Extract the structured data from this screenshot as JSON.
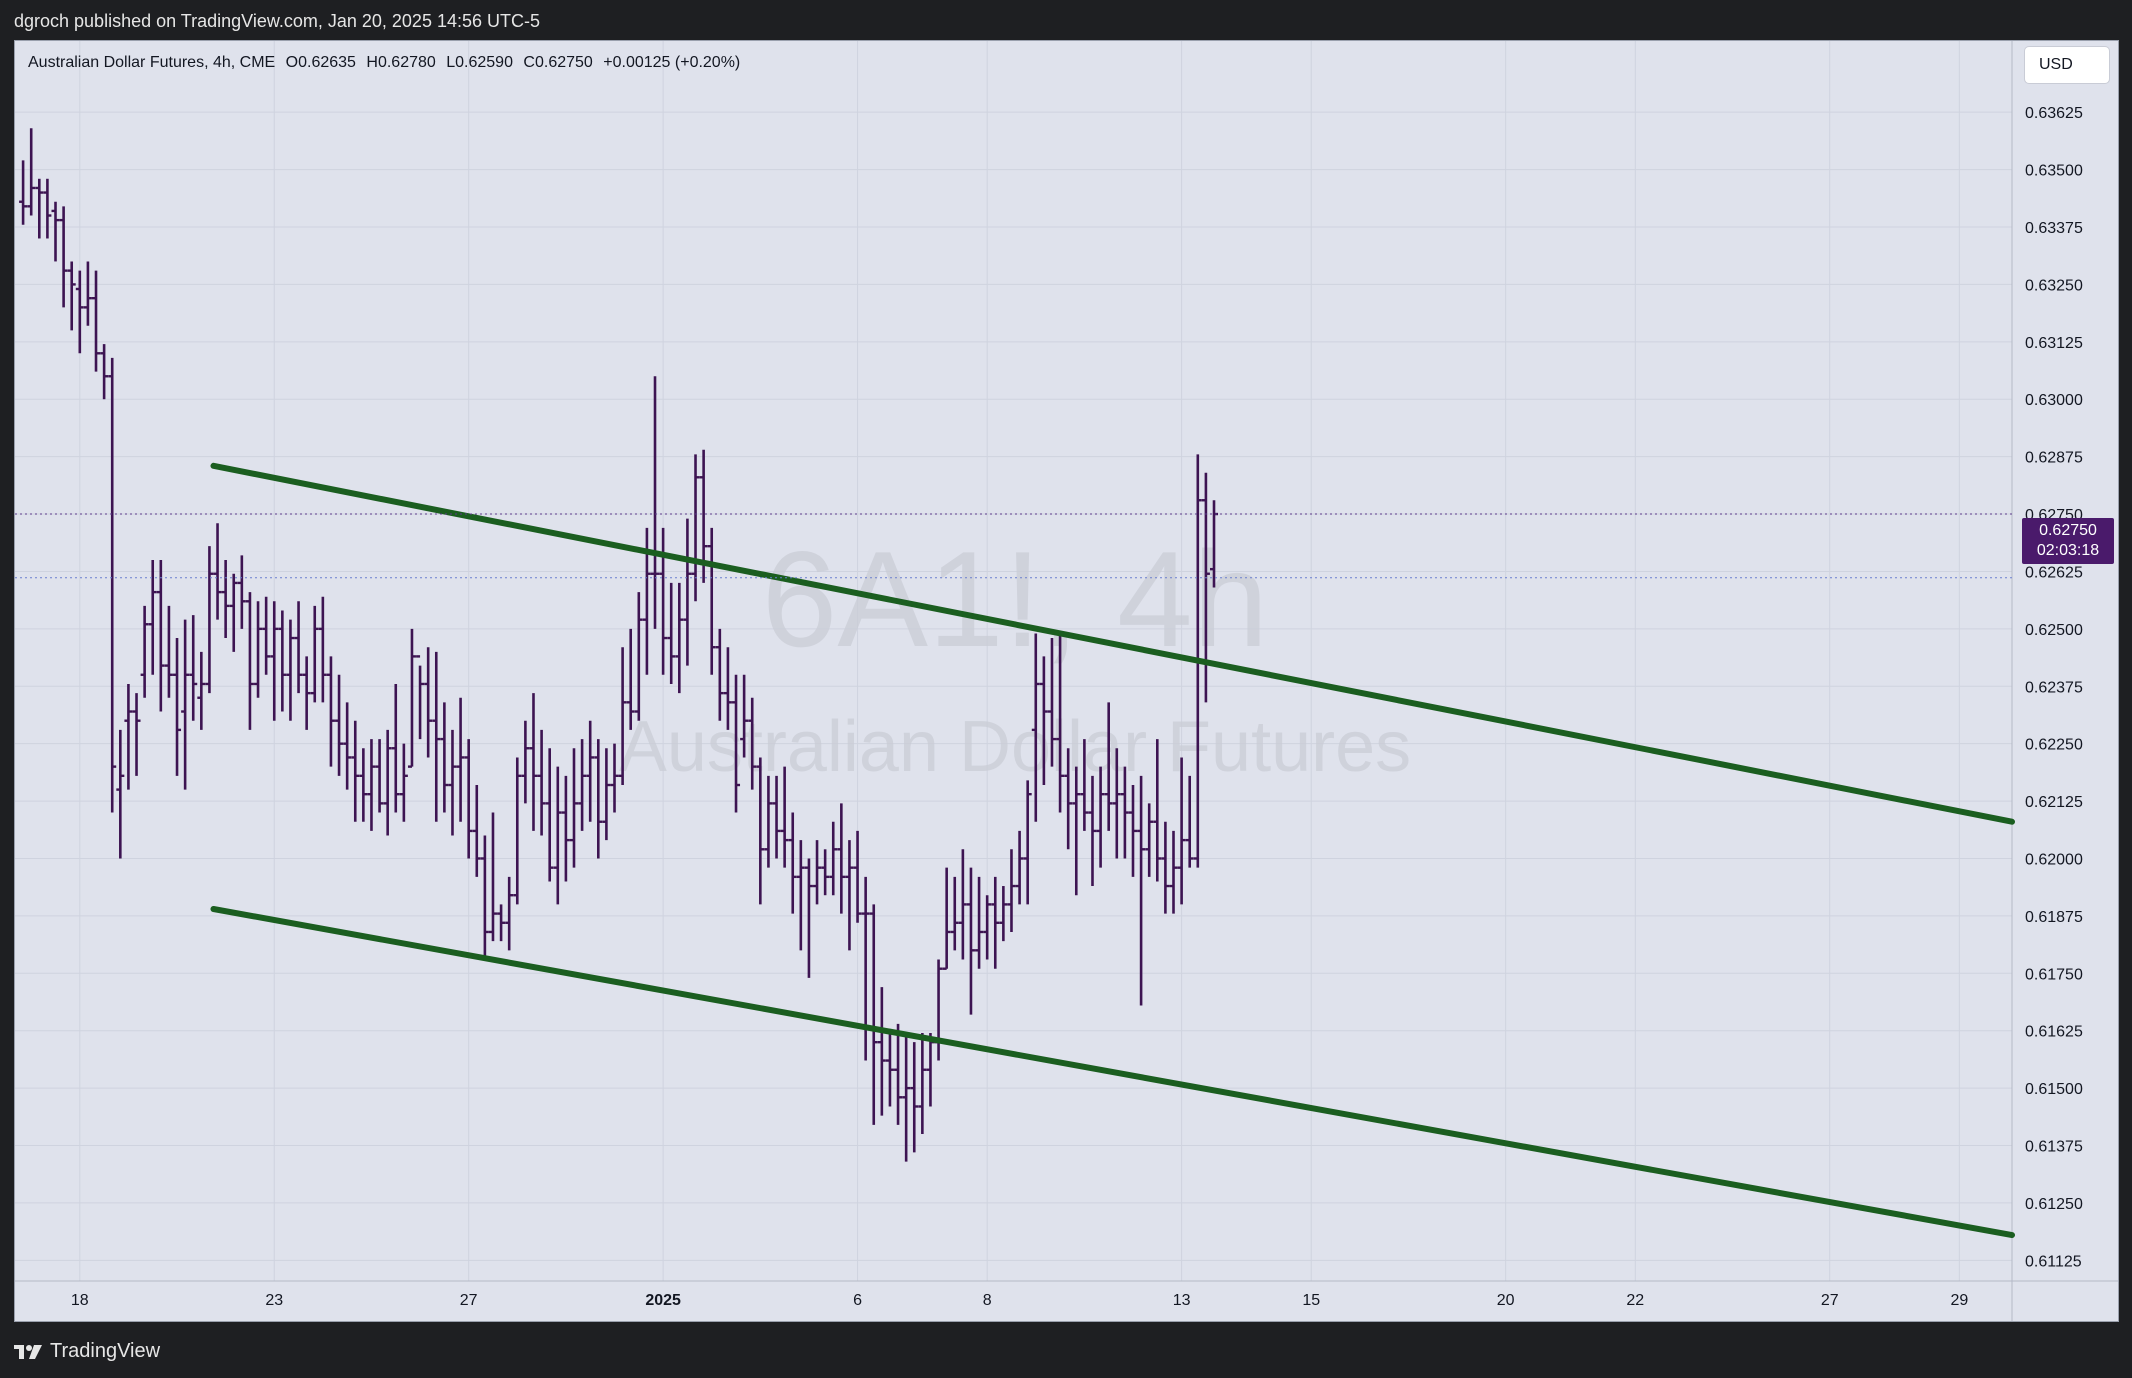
{
  "header": {
    "published_by": "dgroch published on TradingView.com, Jan 20, 2025 14:56 UTC-5"
  },
  "legend": {
    "symbol": "Australian Dollar Futures, 4h, CME",
    "open": "O0.62635",
    "high": "H0.62780",
    "low": "L0.62590",
    "close": "C0.62750",
    "change": "+0.00125 (+0.20%)"
  },
  "currency_button": "USD",
  "watermark": {
    "ticker": "6A1!, 4h",
    "name": "Australian Dollar Futures"
  },
  "last_price": {
    "price": "0.62750",
    "countdown": "02:03:18"
  },
  "footer": {
    "brand": "TradingView"
  },
  "colors": {
    "bar": "#3d1452",
    "channel": "#1b5e20",
    "price_tag": "#4a1a6b",
    "background": "#dfe2ec"
  },
  "chart_data": {
    "type": "ohlc",
    "timeframe": "4h",
    "ylim": [
      0.6108,
      0.6378
    ],
    "y_ticks": [
      "0.63625",
      "0.63500",
      "0.63375",
      "0.63250",
      "0.63125",
      "0.63000",
      "0.62875",
      "0.62750",
      "0.62625",
      "0.62500",
      "0.62375",
      "0.62250",
      "0.62125",
      "0.62000",
      "0.61875",
      "0.61750",
      "0.61625",
      "0.61500",
      "0.61375",
      "0.61250",
      "0.61125"
    ],
    "x_ticks": [
      {
        "label": "18",
        "i": 7
      },
      {
        "label": "23",
        "i": 31
      },
      {
        "label": "27",
        "i": 55
      },
      {
        "label": "2025",
        "i": 79,
        "bold": true
      },
      {
        "label": "6",
        "i": 103
      },
      {
        "label": "8",
        "i": 119
      },
      {
        "label": "13",
        "i": 143
      },
      {
        "label": "15",
        "i": 159
      },
      {
        "label": "20",
        "i": 183
      },
      {
        "label": "22",
        "i": 199
      },
      {
        "label": "27",
        "i": 223
      },
      {
        "label": "29",
        "i": 239
      }
    ],
    "x_range": [
      -1,
      245.5
    ],
    "bars": [
      [
        0.6343,
        0.6352,
        0.6338,
        0.6342
      ],
      [
        0.6342,
        0.6359,
        0.634,
        0.6346
      ],
      [
        0.6346,
        0.6348,
        0.6335,
        0.6345
      ],
      [
        0.6345,
        0.6348,
        0.6335,
        0.634
      ],
      [
        0.6341,
        0.6343,
        0.633,
        0.6339
      ],
      [
        0.6339,
        0.6342,
        0.632,
        0.6328
      ],
      [
        0.6328,
        0.633,
        0.6315,
        0.6325
      ],
      [
        0.6324,
        0.6328,
        0.631,
        0.632
      ],
      [
        0.632,
        0.633,
        0.6316,
        0.6322
      ],
      [
        0.6322,
        0.6328,
        0.6306,
        0.631
      ],
      [
        0.631,
        0.6312,
        0.63,
        0.6305
      ],
      [
        0.6305,
        0.6309,
        0.621,
        0.622
      ],
      [
        0.6215,
        0.6228,
        0.62,
        0.6218
      ],
      [
        0.623,
        0.6238,
        0.6215,
        0.6232
      ],
      [
        0.6232,
        0.6236,
        0.6218,
        0.623
      ],
      [
        0.624,
        0.6255,
        0.6235,
        0.6251
      ],
      [
        0.6251,
        0.6265,
        0.624,
        0.6258
      ],
      [
        0.6258,
        0.6265,
        0.6232,
        0.6242
      ],
      [
        0.6242,
        0.6255,
        0.6235,
        0.624
      ],
      [
        0.624,
        0.6248,
        0.6218,
        0.6228
      ],
      [
        0.6232,
        0.6252,
        0.6215,
        0.624
      ],
      [
        0.624,
        0.6253,
        0.623,
        0.6238
      ],
      [
        0.6235,
        0.6245,
        0.6228,
        0.6238
      ],
      [
        0.6238,
        0.6268,
        0.6236,
        0.6262
      ],
      [
        0.6262,
        0.6273,
        0.6252,
        0.6258
      ],
      [
        0.6258,
        0.6265,
        0.6248,
        0.6255
      ],
      [
        0.6255,
        0.6262,
        0.6245,
        0.626
      ],
      [
        0.626,
        0.6266,
        0.625,
        0.6256
      ],
      [
        0.6256,
        0.6258,
        0.6228,
        0.6238
      ],
      [
        0.6238,
        0.6256,
        0.6235,
        0.625
      ],
      [
        0.625,
        0.6257,
        0.624,
        0.6244
      ],
      [
        0.6244,
        0.6256,
        0.623,
        0.625
      ],
      [
        0.625,
        0.6254,
        0.6232,
        0.624
      ],
      [
        0.624,
        0.6252,
        0.623,
        0.6248
      ],
      [
        0.6248,
        0.6256,
        0.6236,
        0.624
      ],
      [
        0.624,
        0.6244,
        0.6228,
        0.6236
      ],
      [
        0.6236,
        0.6255,
        0.6234,
        0.625
      ],
      [
        0.625,
        0.6257,
        0.6234,
        0.624
      ],
      [
        0.624,
        0.6244,
        0.622,
        0.623
      ],
      [
        0.623,
        0.624,
        0.6218,
        0.6225
      ],
      [
        0.6225,
        0.6234,
        0.6215,
        0.6222
      ],
      [
        0.6222,
        0.623,
        0.6208,
        0.6218
      ],
      [
        0.6218,
        0.6224,
        0.6208,
        0.6214
      ],
      [
        0.6214,
        0.6226,
        0.6206,
        0.622
      ],
      [
        0.622,
        0.6226,
        0.621,
        0.6212
      ],
      [
        0.6212,
        0.6228,
        0.6205,
        0.6224
      ],
      [
        0.6224,
        0.6238,
        0.621,
        0.6214
      ],
      [
        0.6214,
        0.6225,
        0.6208,
        0.6218
      ],
      [
        0.622,
        0.625,
        0.622,
        0.6244
      ],
      [
        0.6244,
        0.6242,
        0.6226,
        0.6238
      ],
      [
        0.6238,
        0.6246,
        0.6222,
        0.623
      ],
      [
        0.623,
        0.6245,
        0.6208,
        0.6226
      ],
      [
        0.6226,
        0.6234,
        0.621,
        0.6216
      ],
      [
        0.6216,
        0.6228,
        0.6205,
        0.622
      ],
      [
        0.622,
        0.6235,
        0.6208,
        0.6222
      ],
      [
        0.6222,
        0.6226,
        0.62,
        0.6206
      ],
      [
        0.6206,
        0.6216,
        0.6196,
        0.62
      ],
      [
        0.62,
        0.6205,
        0.6178,
        0.6184
      ],
      [
        0.6184,
        0.621,
        0.6182,
        0.6188
      ],
      [
        0.6188,
        0.619,
        0.6182,
        0.6186
      ],
      [
        0.6186,
        0.6196,
        0.618,
        0.6192
      ],
      [
        0.6192,
        0.6222,
        0.619,
        0.6218
      ],
      [
        0.6218,
        0.623,
        0.6212,
        0.6224
      ],
      [
        0.6224,
        0.6236,
        0.6206,
        0.6218
      ],
      [
        0.6218,
        0.6228,
        0.6205,
        0.6212
      ],
      [
        0.6212,
        0.6224,
        0.6195,
        0.6198
      ],
      [
        0.6198,
        0.622,
        0.619,
        0.621
      ],
      [
        0.621,
        0.6218,
        0.6195,
        0.6204
      ],
      [
        0.6204,
        0.6224,
        0.6198,
        0.6212
      ],
      [
        0.6212,
        0.6226,
        0.6206,
        0.6218
      ],
      [
        0.6218,
        0.623,
        0.6208,
        0.6222
      ],
      [
        0.6222,
        0.6226,
        0.62,
        0.6208
      ],
      [
        0.6208,
        0.6224,
        0.6204,
        0.6216
      ],
      [
        0.6216,
        0.6225,
        0.621,
        0.6218
      ],
      [
        0.6218,
        0.6246,
        0.6216,
        0.6234
      ],
      [
        0.6234,
        0.625,
        0.6228,
        0.6232
      ],
      [
        0.6232,
        0.6258,
        0.623,
        0.6252
      ],
      [
        0.6252,
        0.6272,
        0.624,
        0.6262
      ],
      [
        0.6262,
        0.6305,
        0.625,
        0.6262
      ],
      [
        0.6262,
        0.6272,
        0.624,
        0.6248
      ],
      [
        0.6248,
        0.626,
        0.6238,
        0.6244
      ],
      [
        0.6244,
        0.626,
        0.6236,
        0.6252
      ],
      [
        0.6252,
        0.6274,
        0.6242,
        0.6262
      ],
      [
        0.6262,
        0.6288,
        0.6256,
        0.6283
      ],
      [
        0.6283,
        0.6289,
        0.626,
        0.6268
      ],
      [
        0.6268,
        0.6272,
        0.624,
        0.6246
      ],
      [
        0.6246,
        0.625,
        0.623,
        0.6236
      ],
      [
        0.6236,
        0.6246,
        0.6228,
        0.6234
      ],
      [
        0.6234,
        0.624,
        0.621,
        0.6216
      ],
      [
        0.6226,
        0.624,
        0.6222,
        0.623
      ],
      [
        0.623,
        0.6235,
        0.6215,
        0.622
      ],
      [
        0.622,
        0.6222,
        0.619,
        0.6202
      ],
      [
        0.6202,
        0.6218,
        0.6198,
        0.6212
      ],
      [
        0.6212,
        0.6218,
        0.62,
        0.6206
      ],
      [
        0.6206,
        0.622,
        0.6198,
        0.6204
      ],
      [
        0.6204,
        0.621,
        0.6188,
        0.6196
      ],
      [
        0.6196,
        0.6204,
        0.618,
        0.6198
      ],
      [
        0.6198,
        0.62,
        0.6174,
        0.6194
      ],
      [
        0.6194,
        0.6204,
        0.619,
        0.6198
      ],
      [
        0.6198,
        0.6202,
        0.6192,
        0.6196
      ],
      [
        0.6196,
        0.6208,
        0.6192,
        0.6202
      ],
      [
        0.6202,
        0.6212,
        0.6188,
        0.6196
      ],
      [
        0.6196,
        0.6204,
        0.618,
        0.6198
      ],
      [
        0.6198,
        0.6206,
        0.6186,
        0.6188
      ],
      [
        0.6188,
        0.6196,
        0.6156,
        0.6188
      ],
      [
        0.6188,
        0.619,
        0.6142,
        0.616
      ],
      [
        0.616,
        0.6172,
        0.6144,
        0.6156
      ],
      [
        0.6156,
        0.6162,
        0.6146,
        0.6154
      ],
      [
        0.6154,
        0.6164,
        0.6142,
        0.6148
      ],
      [
        0.6148,
        0.6162,
        0.6134,
        0.615
      ],
      [
        0.615,
        0.616,
        0.6136,
        0.6146
      ],
      [
        0.6146,
        0.6162,
        0.614,
        0.6154
      ],
      [
        0.6154,
        0.6162,
        0.6146,
        0.616
      ],
      [
        0.616,
        0.6178,
        0.6156,
        0.6176
      ],
      [
        0.6176,
        0.6198,
        0.6176,
        0.6184
      ],
      [
        0.6184,
        0.6196,
        0.618,
        0.6186
      ],
      [
        0.6186,
        0.6202,
        0.6178,
        0.619
      ],
      [
        0.619,
        0.6198,
        0.6166,
        0.618
      ],
      [
        0.618,
        0.6196,
        0.6176,
        0.6184
      ],
      [
        0.6184,
        0.6192,
        0.6178,
        0.619
      ],
      [
        0.619,
        0.6196,
        0.6176,
        0.6186
      ],
      [
        0.6186,
        0.6194,
        0.6182,
        0.619
      ],
      [
        0.619,
        0.6202,
        0.6184,
        0.6194
      ],
      [
        0.6194,
        0.6206,
        0.619,
        0.62
      ],
      [
        0.62,
        0.6217,
        0.619,
        0.6214
      ],
      [
        0.6228,
        0.6249,
        0.6208,
        0.6238
      ],
      [
        0.6238,
        0.6244,
        0.6216,
        0.6232
      ],
      [
        0.6232,
        0.6248,
        0.622,
        0.6226
      ],
      [
        0.6226,
        0.6249,
        0.621,
        0.6218
      ],
      [
        0.6218,
        0.6224,
        0.6202,
        0.6212
      ],
      [
        0.6212,
        0.622,
        0.6192,
        0.6214
      ],
      [
        0.6214,
        0.6226,
        0.6206,
        0.621
      ],
      [
        0.621,
        0.6218,
        0.6194,
        0.6206
      ],
      [
        0.6206,
        0.622,
        0.6198,
        0.6214
      ],
      [
        0.6214,
        0.6234,
        0.6206,
        0.6212
      ],
      [
        0.6212,
        0.6224,
        0.62,
        0.6214
      ],
      [
        0.6214,
        0.622,
        0.62,
        0.621
      ],
      [
        0.621,
        0.6216,
        0.6196,
        0.6206
      ],
      [
        0.6206,
        0.6218,
        0.6168,
        0.6202
      ],
      [
        0.6202,
        0.6212,
        0.6196,
        0.6208
      ],
      [
        0.6208,
        0.6226,
        0.6195,
        0.62
      ],
      [
        0.62,
        0.6208,
        0.6188,
        0.6194
      ],
      [
        0.6194,
        0.6206,
        0.6188,
        0.6198
      ],
      [
        0.6198,
        0.6222,
        0.619,
        0.6204
      ],
      [
        0.6204,
        0.6218,
        0.6198,
        0.62
      ],
      [
        0.62,
        0.6288,
        0.6198,
        0.6278
      ],
      [
        0.6278,
        0.6284,
        0.6234,
        0.6262
      ],
      [
        0.6263,
        0.6278,
        0.6259,
        0.6275
      ]
    ],
    "channel_lines": [
      {
        "name": "upper",
        "x1": 23.5,
        "y1": 0.62855,
        "x2": 245.5,
        "y2": 0.6208
      },
      {
        "name": "lower",
        "x1": 23.5,
        "y1": 0.6189,
        "x2": 245.5,
        "y2": 0.6118
      }
    ]
  }
}
